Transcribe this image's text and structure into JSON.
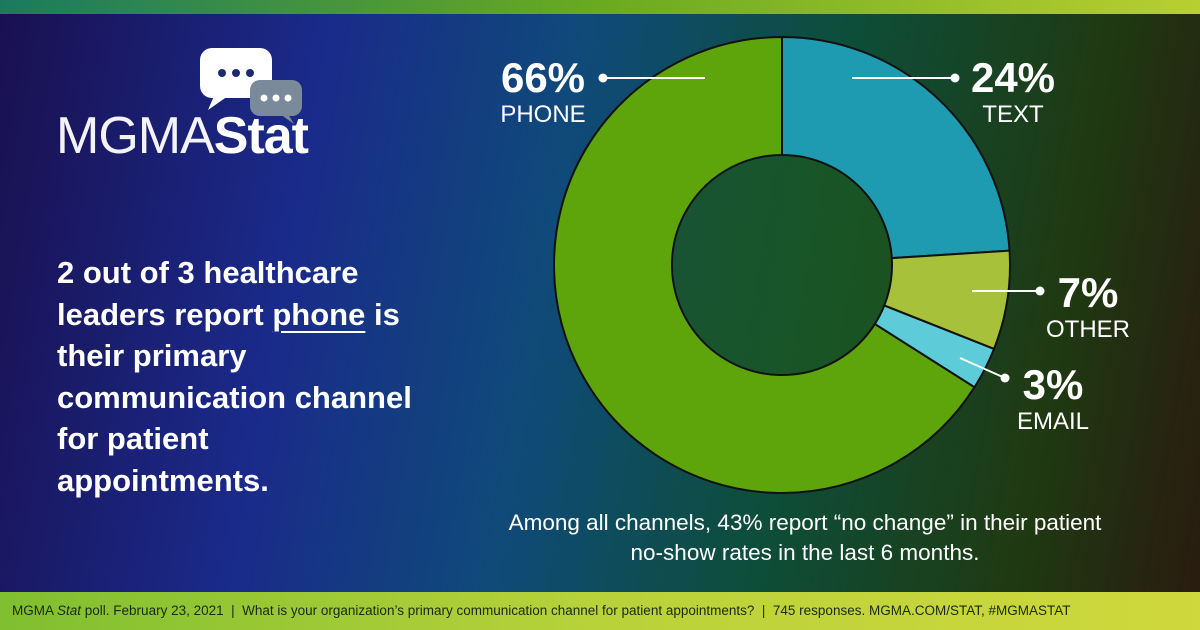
{
  "logo": {
    "first": "MGMA",
    "second": "Stat"
  },
  "headline": {
    "before": "2 out of 3 healthcare leaders report ",
    "emphasis": "phone",
    "after": " is their primary communication channel for patient appointments."
  },
  "chart_data": {
    "type": "donut",
    "categories": [
      "PHONE",
      "TEXT",
      "OTHER",
      "EMAIL"
    ],
    "values": [
      66,
      24,
      7,
      3
    ],
    "value_labels": [
      "66%",
      "24%",
      "7%",
      "3%"
    ],
    "colors": [
      "#5ea40b",
      "#1f9bb1",
      "#a7c23a",
      "#5ecbd9"
    ],
    "note": "Among all channels, 43% report “no change” in their patient no-show rates in the last 6 months."
  },
  "footer": {
    "lead": "MGMA ",
    "italic": "Stat",
    "rest": " poll. February 23, 2021  |  What is your organization’s primary communication channel for patient appointments?  |  745 responses. MGMA.COM/STAT, #MGMASTAT"
  }
}
